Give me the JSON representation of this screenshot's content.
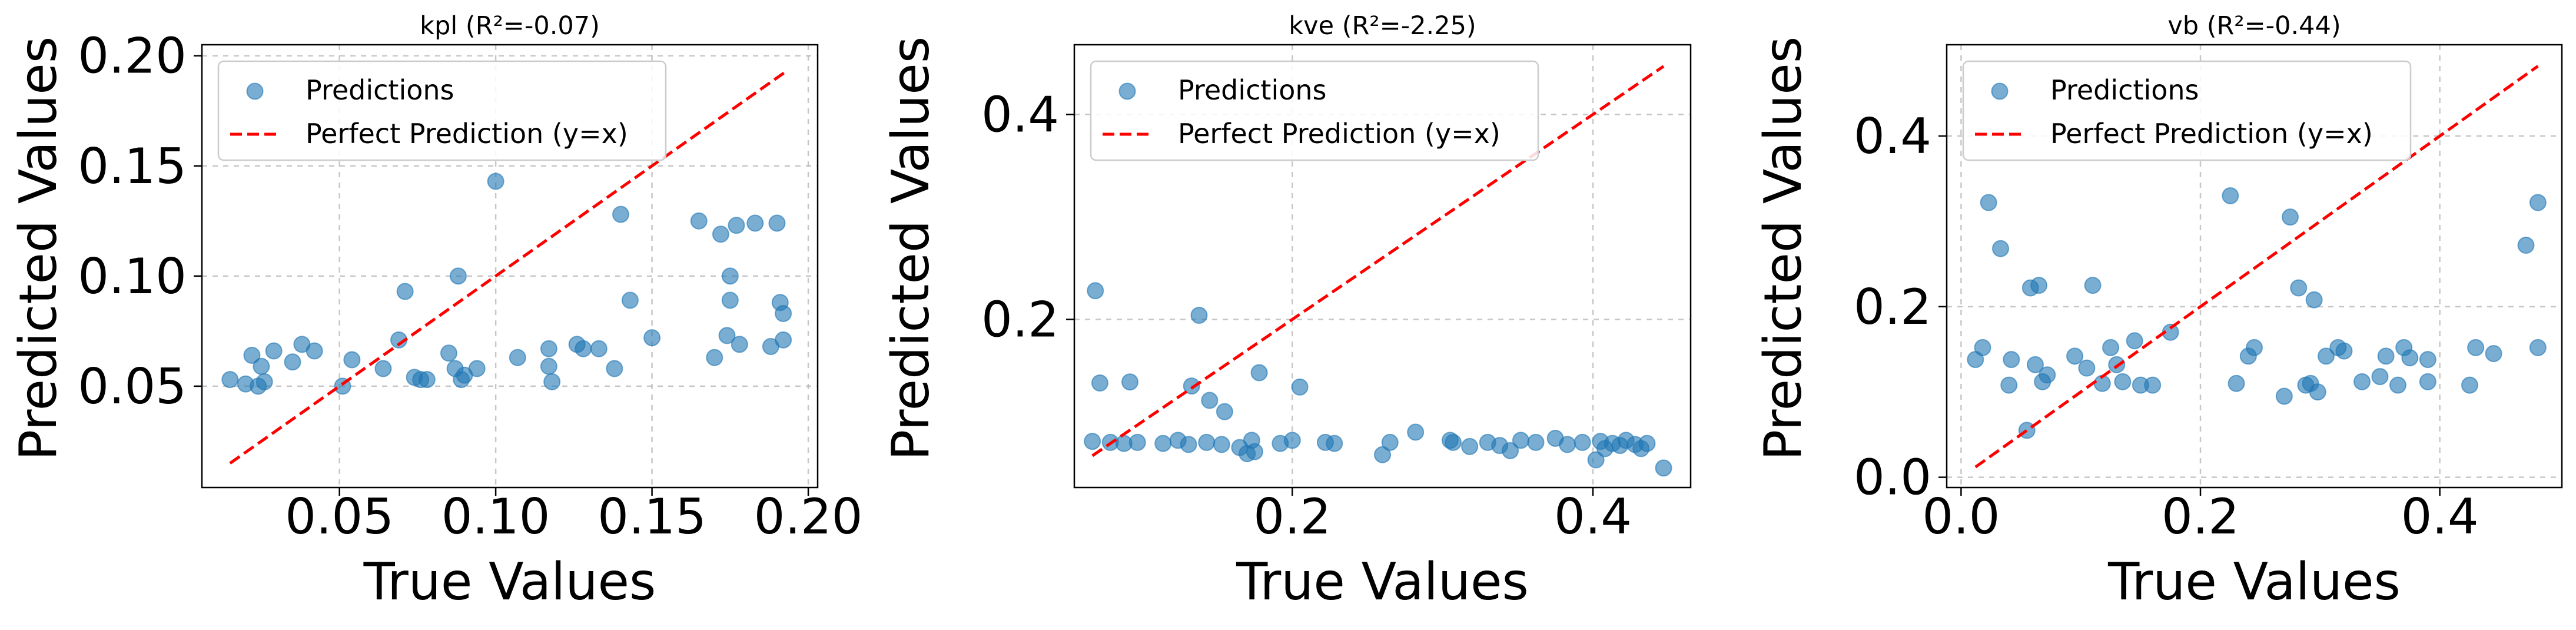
{
  "colors": {
    "points": "#1f77b4",
    "ideal_line": "#ff0000",
    "grid": "#b0b0b0",
    "axes": "#000000"
  },
  "chart_data": [
    {
      "type": "scatter",
      "title": "kpl (R²=-0.07)",
      "xlabel": "True Values",
      "ylabel": "Predicted Values",
      "xlim": [
        0.006,
        0.203
      ],
      "ylim": [
        0.004,
        0.205
      ],
      "xticks": [
        0.05,
        0.1,
        0.15,
        0.2
      ],
      "xtick_labels": [
        "0.05",
        "0.10",
        "0.15",
        "0.20"
      ],
      "yticks": [
        0.05,
        0.1,
        0.15,
        0.2
      ],
      "ytick_labels": [
        "0.05",
        "0.10",
        "0.15",
        "0.20"
      ],
      "grid": true,
      "legend_position": "upper-left",
      "legend": [
        "Predictions",
        "Perfect Prediction (y=x)"
      ],
      "line": {
        "x": [
          0.015,
          0.193
        ],
        "y": [
          0.015,
          0.193
        ]
      },
      "points": [
        [
          0.015,
          0.053
        ],
        [
          0.02,
          0.051
        ],
        [
          0.022,
          0.064
        ],
        [
          0.024,
          0.05
        ],
        [
          0.025,
          0.059
        ],
        [
          0.026,
          0.052
        ],
        [
          0.029,
          0.066
        ],
        [
          0.035,
          0.061
        ],
        [
          0.038,
          0.069
        ],
        [
          0.042,
          0.066
        ],
        [
          0.051,
          0.05
        ],
        [
          0.054,
          0.062
        ],
        [
          0.064,
          0.058
        ],
        [
          0.069,
          0.071
        ],
        [
          0.071,
          0.093
        ],
        [
          0.074,
          0.054
        ],
        [
          0.076,
          0.053
        ],
        [
          0.078,
          0.053
        ],
        [
          0.085,
          0.065
        ],
        [
          0.087,
          0.058
        ],
        [
          0.088,
          0.1
        ],
        [
          0.089,
          0.053
        ],
        [
          0.09,
          0.055
        ],
        [
          0.094,
          0.058
        ],
        [
          0.1,
          0.143
        ],
        [
          0.107,
          0.063
        ],
        [
          0.117,
          0.067
        ],
        [
          0.117,
          0.059
        ],
        [
          0.118,
          0.052
        ],
        [
          0.126,
          0.069
        ],
        [
          0.128,
          0.067
        ],
        [
          0.133,
          0.067
        ],
        [
          0.138,
          0.058
        ],
        [
          0.14,
          0.128
        ],
        [
          0.143,
          0.089
        ],
        [
          0.15,
          0.072
        ],
        [
          0.165,
          0.125
        ],
        [
          0.17,
          0.063
        ],
        [
          0.172,
          0.119
        ],
        [
          0.174,
          0.073
        ],
        [
          0.175,
          0.1
        ],
        [
          0.175,
          0.089
        ],
        [
          0.177,
          0.123
        ],
        [
          0.178,
          0.069
        ],
        [
          0.183,
          0.124
        ],
        [
          0.188,
          0.068
        ],
        [
          0.19,
          0.124
        ],
        [
          0.191,
          0.088
        ],
        [
          0.192,
          0.083
        ],
        [
          0.192,
          0.071
        ]
      ]
    },
    {
      "type": "scatter",
      "title": "kve (R²=-2.25)",
      "xlabel": "True Values",
      "ylabel": "Predicted Values",
      "xlim": [
        0.055,
        0.465
      ],
      "ylim": [
        0.036,
        0.468
      ],
      "xticks": [
        0.2,
        0.4
      ],
      "xtick_labels": [
        "0.2",
        "0.4"
      ],
      "yticks": [
        0.2,
        0.4
      ],
      "ytick_labels": [
        "0.2",
        "0.4"
      ],
      "grid": true,
      "legend_position": "upper-left",
      "legend": [
        "Predictions",
        "Perfect Prediction (y=x)"
      ],
      "line": {
        "x": [
          0.067,
          0.447
        ],
        "y": [
          0.067,
          0.447
        ]
      },
      "points": [
        [
          0.067,
          0.081
        ],
        [
          0.069,
          0.228
        ],
        [
          0.072,
          0.138
        ],
        [
          0.079,
          0.08
        ],
        [
          0.088,
          0.079
        ],
        [
          0.092,
          0.139
        ],
        [
          0.097,
          0.08
        ],
        [
          0.114,
          0.079
        ],
        [
          0.124,
          0.082
        ],
        [
          0.131,
          0.078
        ],
        [
          0.133,
          0.135
        ],
        [
          0.138,
          0.204
        ],
        [
          0.143,
          0.08
        ],
        [
          0.145,
          0.121
        ],
        [
          0.153,
          0.078
        ],
        [
          0.155,
          0.11
        ],
        [
          0.165,
          0.075
        ],
        [
          0.17,
          0.069
        ],
        [
          0.173,
          0.082
        ],
        [
          0.175,
          0.071
        ],
        [
          0.178,
          0.148
        ],
        [
          0.192,
          0.079
        ],
        [
          0.2,
          0.082
        ],
        [
          0.205,
          0.134
        ],
        [
          0.222,
          0.08
        ],
        [
          0.228,
          0.079
        ],
        [
          0.26,
          0.068
        ],
        [
          0.265,
          0.08
        ],
        [
          0.282,
          0.09
        ],
        [
          0.305,
          0.082
        ],
        [
          0.307,
          0.08
        ],
        [
          0.318,
          0.076
        ],
        [
          0.33,
          0.08
        ],
        [
          0.338,
          0.077
        ],
        [
          0.345,
          0.072
        ],
        [
          0.352,
          0.082
        ],
        [
          0.362,
          0.08
        ],
        [
          0.375,
          0.084
        ],
        [
          0.383,
          0.078
        ],
        [
          0.393,
          0.08
        ],
        [
          0.402,
          0.063
        ],
        [
          0.405,
          0.081
        ],
        [
          0.408,
          0.074
        ],
        [
          0.413,
          0.079
        ],
        [
          0.418,
          0.077
        ],
        [
          0.422,
          0.082
        ],
        [
          0.428,
          0.078
        ],
        [
          0.432,
          0.074
        ],
        [
          0.436,
          0.079
        ],
        [
          0.447,
          0.055
        ]
      ]
    },
    {
      "type": "scatter",
      "title": "vb (R²=-0.44)",
      "xlabel": "True Values",
      "ylabel": "Predicted Values",
      "xlim": [
        -0.012,
        0.502
      ],
      "ylim": [
        -0.012,
        0.507
      ],
      "xticks": [
        0.0,
        0.2,
        0.4
      ],
      "xtick_labels": [
        "0.0",
        "0.2",
        "0.4"
      ],
      "yticks": [
        0.0,
        0.2,
        0.4
      ],
      "ytick_labels": [
        "0.0",
        "0.2",
        "0.4"
      ],
      "grid": true,
      "legend_position": "upper-left",
      "legend": [
        "Predictions",
        "Perfect Prediction (y=x)"
      ],
      "line": {
        "x": [
          0.012,
          0.482
        ],
        "y": [
          0.012,
          0.482
        ]
      },
      "points": [
        [
          0.012,
          0.138
        ],
        [
          0.018,
          0.152
        ],
        [
          0.023,
          0.322
        ],
        [
          0.033,
          0.268
        ],
        [
          0.04,
          0.108
        ],
        [
          0.042,
          0.138
        ],
        [
          0.055,
          0.055
        ],
        [
          0.058,
          0.222
        ],
        [
          0.062,
          0.132
        ],
        [
          0.065,
          0.225
        ],
        [
          0.068,
          0.112
        ],
        [
          0.072,
          0.12
        ],
        [
          0.095,
          0.142
        ],
        [
          0.105,
          0.128
        ],
        [
          0.11,
          0.225
        ],
        [
          0.118,
          0.11
        ],
        [
          0.125,
          0.152
        ],
        [
          0.13,
          0.132
        ],
        [
          0.135,
          0.112
        ],
        [
          0.145,
          0.16
        ],
        [
          0.15,
          0.108
        ],
        [
          0.16,
          0.108
        ],
        [
          0.175,
          0.17
        ],
        [
          0.225,
          0.33
        ],
        [
          0.23,
          0.11
        ],
        [
          0.24,
          0.142
        ],
        [
          0.245,
          0.152
        ],
        [
          0.27,
          0.095
        ],
        [
          0.275,
          0.305
        ],
        [
          0.282,
          0.222
        ],
        [
          0.288,
          0.108
        ],
        [
          0.292,
          0.11
        ],
        [
          0.295,
          0.208
        ],
        [
          0.298,
          0.1
        ],
        [
          0.305,
          0.142
        ],
        [
          0.315,
          0.152
        ],
        [
          0.32,
          0.148
        ],
        [
          0.335,
          0.112
        ],
        [
          0.35,
          0.118
        ],
        [
          0.355,
          0.142
        ],
        [
          0.365,
          0.108
        ],
        [
          0.37,
          0.152
        ],
        [
          0.375,
          0.14
        ],
        [
          0.39,
          0.112
        ],
        [
          0.39,
          0.138
        ],
        [
          0.425,
          0.108
        ],
        [
          0.43,
          0.152
        ],
        [
          0.445,
          0.145
        ],
        [
          0.472,
          0.272
        ],
        [
          0.482,
          0.322
        ],
        [
          0.482,
          0.152
        ]
      ]
    }
  ]
}
